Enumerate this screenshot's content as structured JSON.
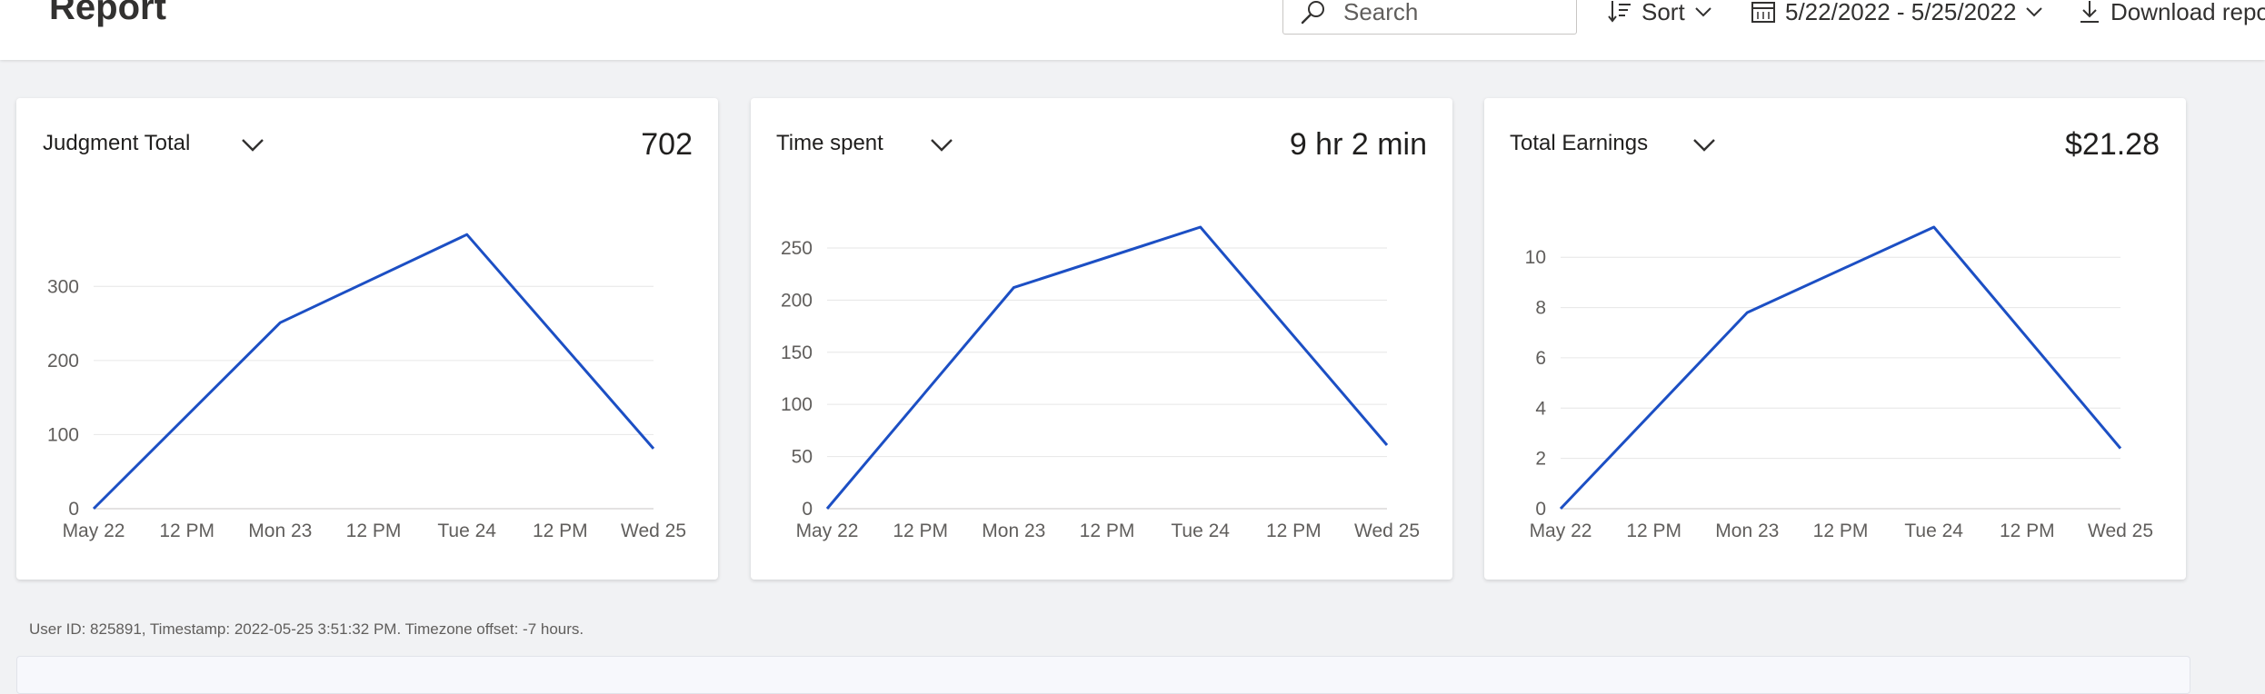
{
  "header": {
    "title": "Report",
    "search_placeholder": "Search",
    "sort_label": "Sort",
    "date_range_label": "5/22/2022 - 5/25/2022",
    "download_label": "Download report"
  },
  "cards": [
    {
      "title": "Judgment Total",
      "value": "702",
      "chart_data": {
        "type": "line",
        "x": [
          "May 22",
          "12 PM",
          "Mon 23",
          "12 PM",
          "Tue 24",
          "12 PM",
          "Wed 25"
        ],
        "y_ticks": [
          0,
          100,
          200,
          300
        ],
        "ylim": [
          0,
          380
        ],
        "grid": true,
        "color": "#1c4fc4",
        "points": [
          {
            "x": "May 22",
            "y": 0
          },
          {
            "x": "Mon 23",
            "y": 251
          },
          {
            "x": "Tue 24",
            "y": 370
          },
          {
            "x": "Wed 25",
            "y": 81
          }
        ]
      }
    },
    {
      "title": "Time spent",
      "value": "9 hr 2 min",
      "chart_data": {
        "type": "line",
        "x": [
          "May 22",
          "12 PM",
          "Mon 23",
          "12 PM",
          "Tue 24",
          "12 PM",
          "Wed 25"
        ],
        "y_ticks": [
          0,
          50,
          100,
          150,
          200,
          250
        ],
        "ylim": [
          0,
          270
        ],
        "grid": true,
        "color": "#1c4fc4",
        "points": [
          {
            "x": "May 22",
            "y": 0
          },
          {
            "x": "Mon 23",
            "y": 212
          },
          {
            "x": "Tue 24",
            "y": 270
          },
          {
            "x": "Wed 25",
            "y": 61
          }
        ]
      }
    },
    {
      "title": "Total Earnings",
      "value": "$21.28",
      "chart_data": {
        "type": "line",
        "x": [
          "May 22",
          "12 PM",
          "Mon 23",
          "12 PM",
          "Tue 24",
          "12 PM",
          "Wed 25"
        ],
        "y_ticks": [
          0,
          2,
          4,
          6,
          8,
          10
        ],
        "ylim": [
          0,
          11.2
        ],
        "grid": true,
        "color": "#1c4fc4",
        "points": [
          {
            "x": "May 22",
            "y": 0
          },
          {
            "x": "Mon 23",
            "y": 7.8
          },
          {
            "x": "Tue 24",
            "y": 11.2
          },
          {
            "x": "Wed 25",
            "y": 2.4
          }
        ]
      }
    }
  ],
  "footer": {
    "note": "User ID: 825891,   Timestamp: 2022-05-25 3:51:32 PM. Timezone offset: -7 hours."
  }
}
